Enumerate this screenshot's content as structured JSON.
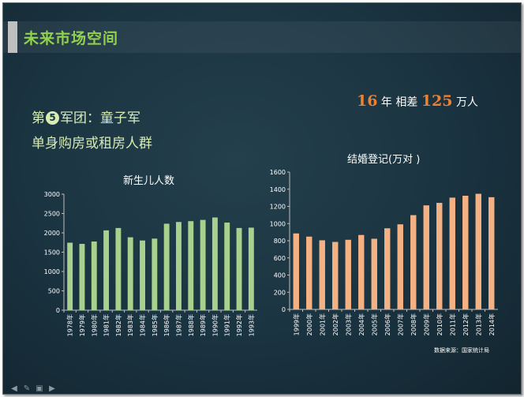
{
  "page": {
    "title": "未来市场空间",
    "heading_line1_pre": "第",
    "heading_line1_num": "5",
    "heading_line1_post": "军团：童子军",
    "heading_line2": "单身购房或租房人群",
    "diff_years": "16",
    "diff_unit1": "年 相差",
    "diff_amount": "125",
    "diff_unit2": "万人",
    "source": "数据来源：国家统计局"
  },
  "nav": {
    "icons": [
      "arrow-left-icon",
      "pen-icon",
      "screen-icon",
      "arrow-right-icon"
    ]
  },
  "colors": {
    "births": "#a9d18e",
    "marriages": "#f4b183",
    "text": "#ffffff",
    "title": "#92d050"
  },
  "chart_data": [
    {
      "type": "bar",
      "title": "新生儿人数",
      "categories": [
        "1978年",
        "1979年",
        "1980年",
        "1981年",
        "1982年",
        "1983年",
        "1984年",
        "1985年",
        "1986年",
        "1987年",
        "1988年",
        "1989年",
        "1990年",
        "1991年",
        "1992年",
        "1993年"
      ],
      "values": [
        1745,
        1715,
        1776,
        2064,
        2125,
        1885,
        1802,
        1851,
        2236,
        2281,
        2302,
        2334,
        2397,
        2265,
        2125,
        2134
      ],
      "ylim": [
        0,
        3000
      ],
      "yticks": [
        0,
        500,
        1000,
        1500,
        2000,
        2500,
        3000
      ],
      "grid": false
    },
    {
      "type": "bar",
      "title": "结婚登记(万对 )",
      "categories": [
        "1999年",
        "2000年",
        "2001年",
        "2002年",
        "2003年",
        "2004年",
        "2005年",
        "2006年",
        "2007年",
        "2008年",
        "2009年",
        "2010年",
        "2011年",
        "2012年",
        "2013年",
        "2014年"
      ],
      "values": [
        885,
        848,
        805,
        786,
        811,
        867,
        823,
        945,
        991,
        1098,
        1212,
        1241,
        1302,
        1324,
        1347,
        1307
      ],
      "ylim": [
        0,
        1600
      ],
      "yticks": [
        0,
        200,
        400,
        600,
        800,
        1000,
        1200,
        1400,
        1600
      ],
      "grid": false
    }
  ]
}
